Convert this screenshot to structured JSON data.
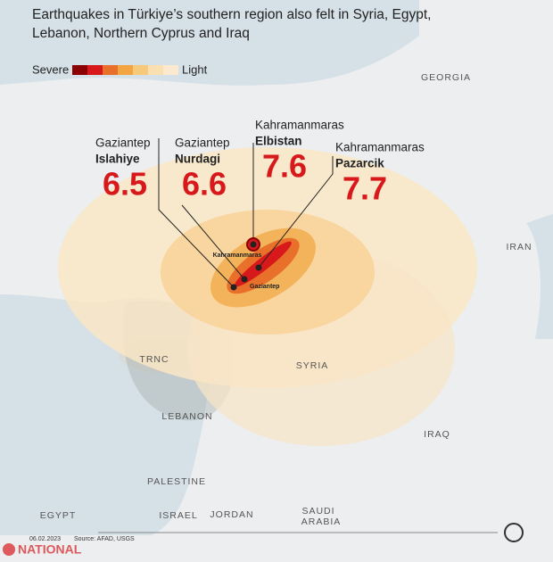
{
  "title": "Earthquakes in Türkiye’s southern region also felt in Syria, Egypt, Lebanon, Northern Cyprus and Iraq",
  "legend": {
    "severe": "Severe",
    "light": "Light"
  },
  "epicenters": [
    {
      "province": "Gaziantep",
      "district": "Islahiye",
      "magnitude": 6.5
    },
    {
      "province": "Gaziantep",
      "district": "Nurdagi",
      "magnitude": 6.6
    },
    {
      "province": "Kahramanmaras",
      "district": "Elbistan",
      "magnitude": 7.6
    },
    {
      "province": "Kahramanmaras",
      "district": "Pazarcik",
      "magnitude": 7.7
    }
  ],
  "map_labels": [
    "GEORGIA",
    "IRAN",
    "SYRIA",
    "TRNC",
    "LEBANON",
    "IRAQ",
    "PALESTINE",
    "EGYPT",
    "ISRAEL",
    "JORDAN",
    "SAUDI",
    "ARABIA"
  ],
  "city_labels": [
    "Kahramanmaras",
    "Gaziantep"
  ],
  "footer": {
    "date": "06.02.2023",
    "source": "Source: AFAD, USGS",
    "brand": "NATIONAL"
  }
}
